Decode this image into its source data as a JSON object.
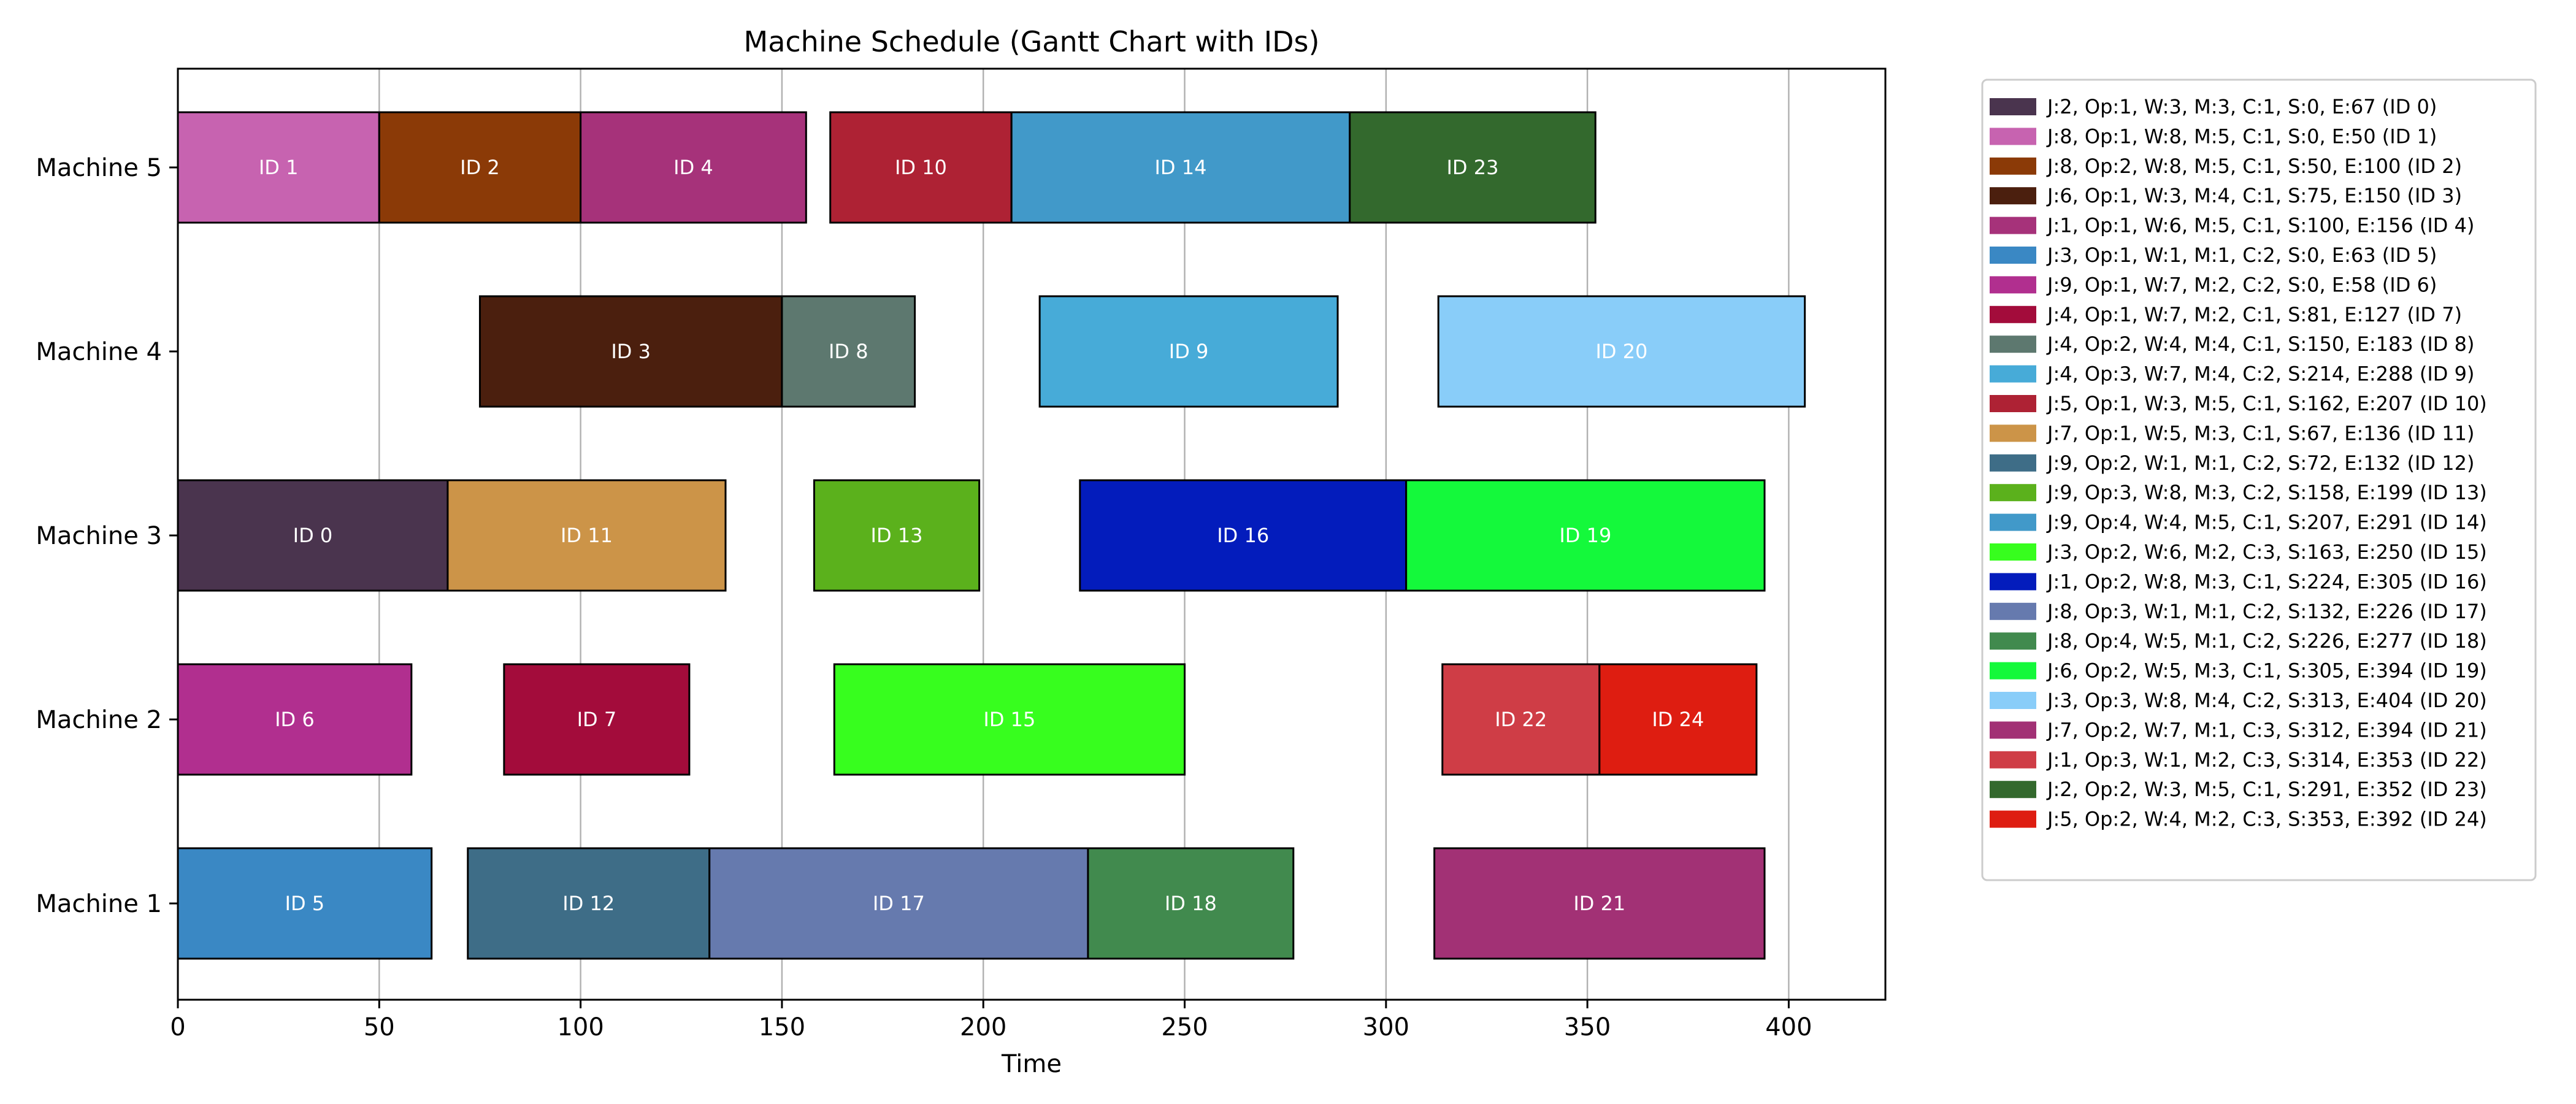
{
  "chart_data": {
    "type": "gantt",
    "title": "Machine Schedule (Gantt Chart with IDs)",
    "xlabel": "Time",
    "ylabel": "",
    "xlim": [
      0,
      424
    ],
    "xticks": [
      0,
      50,
      100,
      150,
      200,
      250,
      300,
      350,
      400
    ],
    "grid": "vertical",
    "legend_position": "outside-right",
    "machines": [
      "Machine 1",
      "Machine 2",
      "Machine 3",
      "Machine 4",
      "Machine 5"
    ],
    "tasks": [
      {
        "id": 0,
        "label": "ID 0",
        "machine": 3,
        "start": 0,
        "end": 67,
        "color": "#4a344e",
        "legend": "J:2, Op:1, W:3, M:3, C:1, S:0, E:67 (ID 0)"
      },
      {
        "id": 1,
        "label": "ID 1",
        "machine": 5,
        "start": 0,
        "end": 50,
        "color": "#c763b0",
        "legend": "J:8, Op:1, W:8, M:5, C:1, S:0, E:50 (ID 1)"
      },
      {
        "id": 2,
        "label": "ID 2",
        "machine": 5,
        "start": 50,
        "end": 100,
        "color": "#8b3a07",
        "legend": "J:8, Op:2, W:8, M:5, C:1, S:50, E:100 (ID 2)"
      },
      {
        "id": 3,
        "label": "ID 3",
        "machine": 4,
        "start": 75,
        "end": 150,
        "color": "#4b1f0e",
        "legend": "J:6, Op:1, W:3, M:4, C:1, S:75, E:150 (ID 3)"
      },
      {
        "id": 4,
        "label": "ID 4",
        "machine": 5,
        "start": 100,
        "end": 156,
        "color": "#a6327a",
        "legend": "J:1, Op:1, W:6, M:5, C:1, S:100, E:156 (ID 4)"
      },
      {
        "id": 5,
        "label": "ID 5",
        "machine": 1,
        "start": 0,
        "end": 63,
        "color": "#3a88c4",
        "legend": "J:3, Op:1, W:1, M:1, C:2, S:0, E:63 (ID 5)"
      },
      {
        "id": 6,
        "label": "ID 6",
        "machine": 2,
        "start": 0,
        "end": 58,
        "color": "#b12f8f",
        "legend": "J:9, Op:1, W:7, M:2, C:2, S:0, E:58 (ID 6)"
      },
      {
        "id": 7,
        "label": "ID 7",
        "machine": 2,
        "start": 81,
        "end": 127,
        "color": "#a30c3b",
        "legend": "J:4, Op:1, W:7, M:2, C:1, S:81, E:127 (ID 7)"
      },
      {
        "id": 8,
        "label": "ID 8",
        "machine": 4,
        "start": 150,
        "end": 183,
        "color": "#5d786f",
        "legend": "J:4, Op:2, W:4, M:4, C:1, S:150, E:183 (ID 8)"
      },
      {
        "id": 9,
        "label": "ID 9",
        "machine": 4,
        "start": 214,
        "end": 288,
        "color": "#47abd8",
        "legend": "J:4, Op:3, W:7, M:4, C:2, S:214, E:288 (ID 9)"
      },
      {
        "id": 10,
        "label": "ID 10",
        "machine": 5,
        "start": 162,
        "end": 207,
        "color": "#ae2234",
        "legend": "J:5, Op:1, W:3, M:5, C:1, S:162, E:207 (ID 10)"
      },
      {
        "id": 11,
        "label": "ID 11",
        "machine": 3,
        "start": 67,
        "end": 136,
        "color": "#cc9448",
        "legend": "J:7, Op:1, W:5, M:3, C:1, S:67, E:136 (ID 11)"
      },
      {
        "id": 12,
        "label": "ID 12",
        "machine": 1,
        "start": 72,
        "end": 132,
        "color": "#3e6d87",
        "legend": "J:9, Op:2, W:1, M:1, C:2, S:72, E:132 (ID 12)"
      },
      {
        "id": 13,
        "label": "ID 13",
        "machine": 3,
        "start": 158,
        "end": 199,
        "color": "#5bb11c",
        "legend": "J:9, Op:3, W:8, M:3, C:2, S:158, E:199 (ID 13)"
      },
      {
        "id": 14,
        "label": "ID 14",
        "machine": 5,
        "start": 207,
        "end": 291,
        "color": "#4199c9",
        "legend": "J:9, Op:4, W:4, M:5, C:1, S:207, E:291 (ID 14)"
      },
      {
        "id": 15,
        "label": "ID 15",
        "machine": 2,
        "start": 163,
        "end": 250,
        "color": "#37fe1e",
        "legend": "J:3, Op:2, W:6, M:2, C:3, S:163, E:250 (ID 15)"
      },
      {
        "id": 16,
        "label": "ID 16",
        "machine": 3,
        "start": 224,
        "end": 305,
        "color": "#031cbc",
        "legend": "J:1, Op:2, W:8, M:3, C:1, S:224, E:305 (ID 16)"
      },
      {
        "id": 17,
        "label": "ID 17",
        "machine": 1,
        "start": 132,
        "end": 226,
        "color": "#667aae",
        "legend": "J:8, Op:3, W:1, M:1, C:2, S:132, E:226 (ID 17)"
      },
      {
        "id": 18,
        "label": "ID 18",
        "machine": 1,
        "start": 226,
        "end": 277,
        "color": "#418a4e",
        "legend": "J:8, Op:4, W:5, M:1, C:2, S:226, E:277 (ID 18)"
      },
      {
        "id": 19,
        "label": "ID 19",
        "machine": 3,
        "start": 305,
        "end": 394,
        "color": "#14f93b",
        "legend": "J:6, Op:2, W:5, M:3, C:1, S:305, E:394 (ID 19)"
      },
      {
        "id": 20,
        "label": "ID 20",
        "machine": 4,
        "start": 313,
        "end": 404,
        "color": "#89cdf9",
        "legend": "J:3, Op:3, W:8, M:4, C:2, S:313, E:404 (ID 20)"
      },
      {
        "id": 21,
        "label": "ID 21",
        "machine": 1,
        "start": 312,
        "end": 394,
        "color": "#a23175",
        "legend": "J:7, Op:2, W:7, M:1, C:3, S:312, E:394 (ID 21)"
      },
      {
        "id": 22,
        "label": "ID 22",
        "machine": 2,
        "start": 314,
        "end": 353,
        "color": "#cf3d46",
        "legend": "J:1, Op:3, W:1, M:2, C:3, S:314, E:353 (ID 22)"
      },
      {
        "id": 23,
        "label": "ID 23",
        "machine": 5,
        "start": 291,
        "end": 352,
        "color": "#33692d",
        "legend": "J:2, Op:2, W:3, M:5, C:1, S:291, E:352 (ID 23)"
      },
      {
        "id": 24,
        "label": "ID 24",
        "machine": 2,
        "start": 353,
        "end": 392,
        "color": "#de1d11",
        "legend": "J:5, Op:2, W:4, M:2, C:3, S:353, E:392 (ID 24)"
      }
    ]
  }
}
